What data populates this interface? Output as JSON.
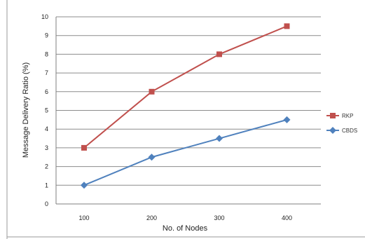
{
  "chart_data": {
    "type": "line",
    "title": "",
    "xlabel": "No. of Nodes",
    "ylabel": "Message Delivery Ratio (%)",
    "categories": [
      "100",
      "200",
      "300",
      "400"
    ],
    "ylim": [
      0,
      10
    ],
    "yticks": [
      "0",
      "1",
      "2",
      "3",
      "4",
      "5",
      "6",
      "7",
      "8",
      "9",
      "10"
    ],
    "grid": true,
    "legend_position": "right",
    "series": [
      {
        "name": "RKP",
        "values": [
          3,
          6,
          8,
          9.5
        ],
        "color": "#c0504d",
        "marker": "square"
      },
      {
        "name": "CBDS",
        "values": [
          1,
          2.5,
          3.5,
          4.5
        ],
        "color": "#4f81bd",
        "marker": "diamond"
      }
    ]
  }
}
